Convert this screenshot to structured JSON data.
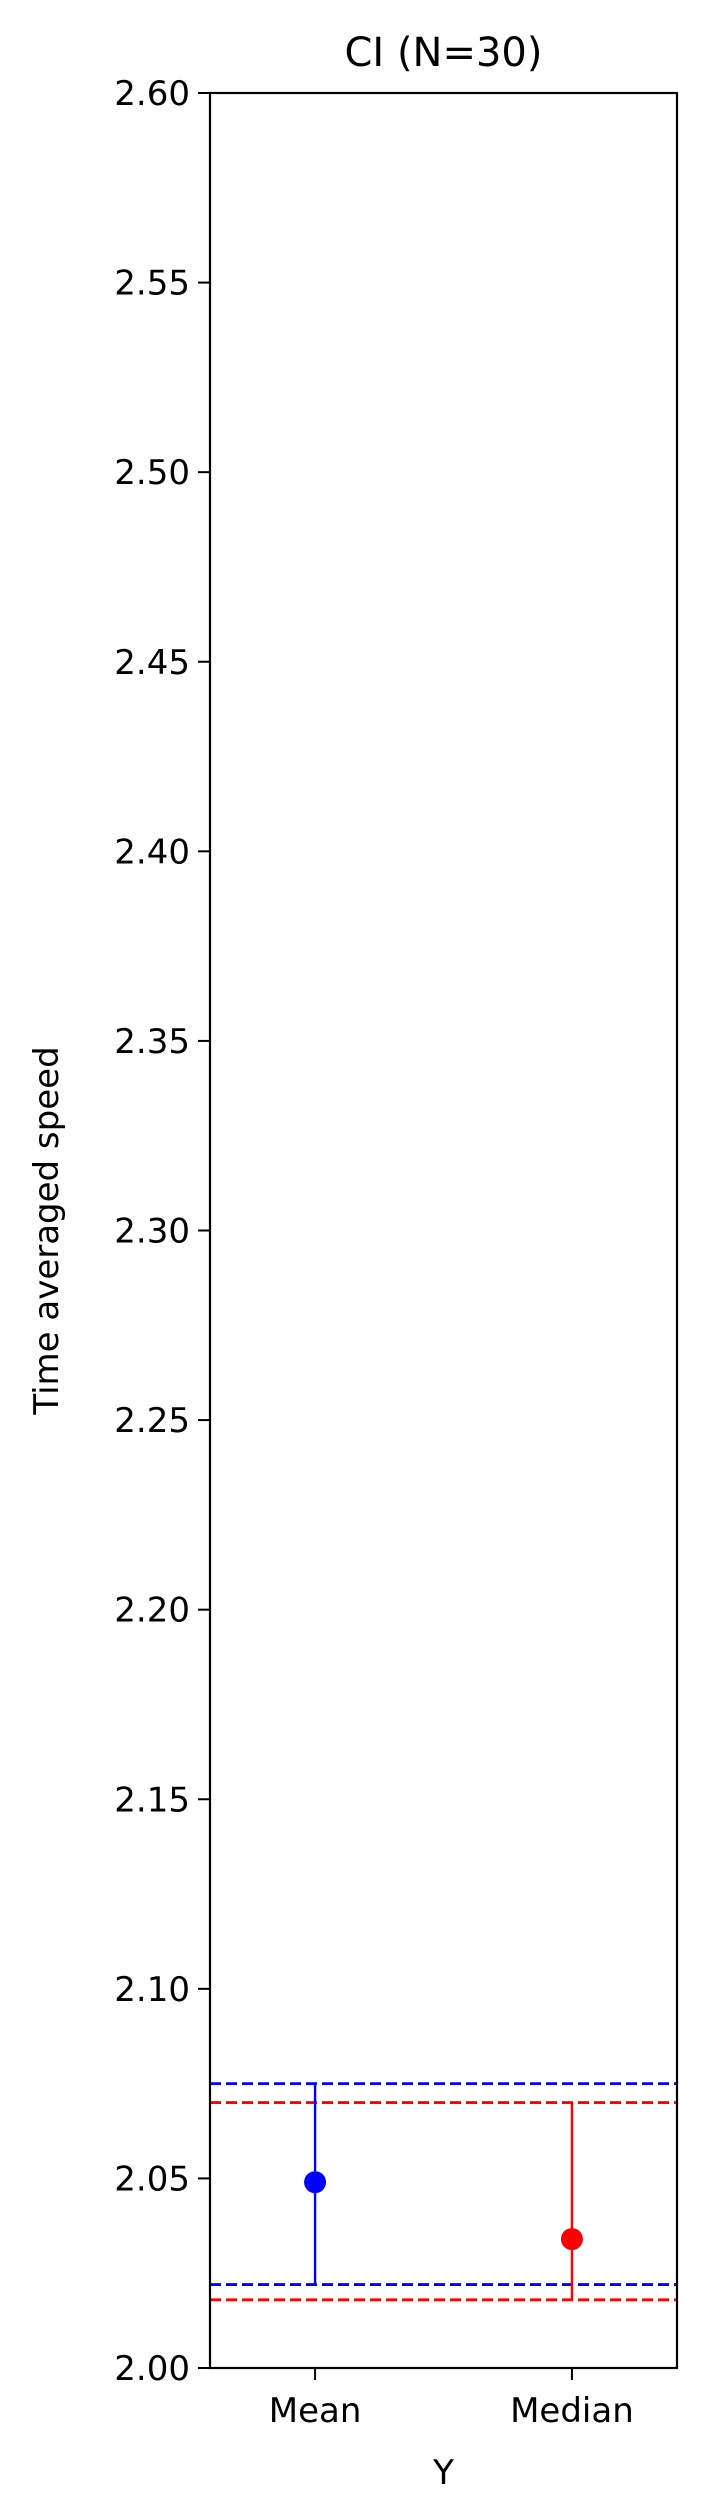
{
  "chart_data": {
    "type": "errorbar",
    "title": "CI (N=30)",
    "xlabel": "Y",
    "ylabel": "Time averaged speed",
    "ylim": [
      2.0,
      2.6
    ],
    "yticks": [
      "2.00",
      "2.05",
      "2.10",
      "2.15",
      "2.20",
      "2.25",
      "2.30",
      "2.35",
      "2.40",
      "2.45",
      "2.50",
      "2.55",
      "2.60"
    ],
    "categories": [
      "Mean",
      "Median"
    ],
    "grid": false,
    "series": [
      {
        "color": "#0000ff",
        "value": 2.049,
        "lower": 2.022,
        "upper": 2.075
      },
      {
        "color": "#ff0000",
        "value": 2.034,
        "lower": 2.018,
        "upper": 2.07
      }
    ],
    "reference_lines": [
      {
        "color": "#0000ff",
        "y": 2.075,
        "style": "dashed"
      },
      {
        "color": "#0000ff",
        "y": 2.022,
        "style": "dashed"
      },
      {
        "color": "#ff0000",
        "y": 2.07,
        "style": "dashed"
      },
      {
        "color": "#ff0000",
        "y": 2.018,
        "style": "dashed"
      }
    ]
  }
}
